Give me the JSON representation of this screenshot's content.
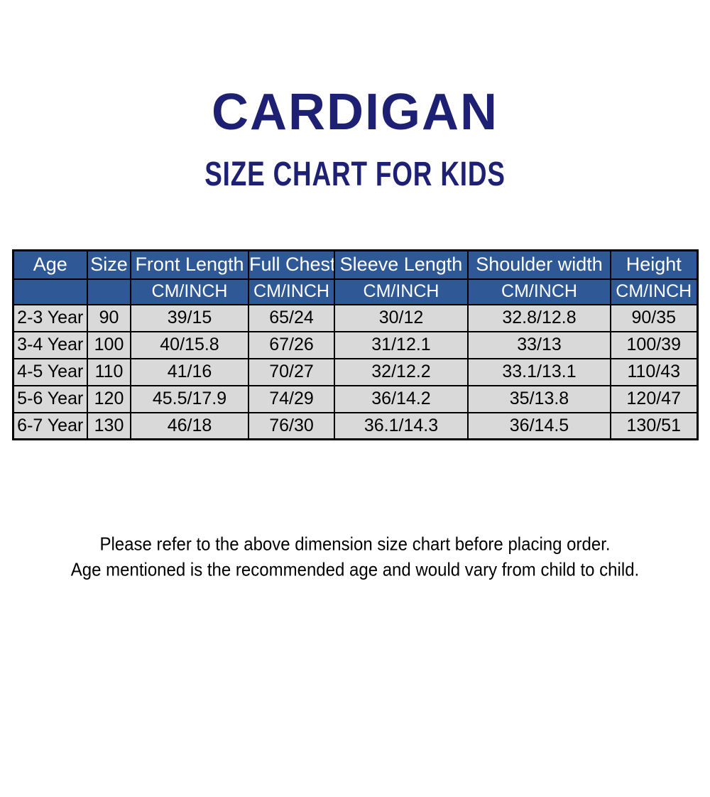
{
  "title": "CARDIGAN",
  "subtitle": "SIZE CHART FOR KIDS",
  "colors": {
    "title_text": "#1e2173",
    "header_bg": "#2f5897",
    "header_text": "#ffffff",
    "cell_bg": "#d9d9d9",
    "cell_text": "#000000",
    "border": "#000000",
    "page_bg": "#ffffff"
  },
  "chart_data": {
    "type": "table",
    "title": "CARDIGAN",
    "subtitle": "SIZE CHART FOR KIDS",
    "columns": [
      "Age",
      "Size",
      "Front Length",
      "Full Chest",
      "Sleeve Length",
      "Shoulder width",
      "Height"
    ],
    "units_row": [
      "",
      "",
      "CM/INCH",
      "CM/INCH",
      "CM/INCH",
      "CM/INCH",
      "CM/INCH"
    ],
    "rows": [
      [
        "2-3 Year",
        "90",
        "39/15",
        "65/24",
        "30/12",
        "32.8/12.8",
        "90/35"
      ],
      [
        "3-4 Year",
        "100",
        "40/15.8",
        "67/26",
        "31/12.1",
        "33/13",
        "100/39"
      ],
      [
        "4-5 Year",
        "110",
        "41/16",
        "70/27",
        "32/12.2",
        "33.1/13.1",
        "110/43"
      ],
      [
        "5-6 Year",
        "120",
        "45.5/17.9",
        "74/29",
        "36/14.2",
        "35/13.8",
        "120/47"
      ],
      [
        "6-7 Year",
        "130",
        "46/18",
        "76/30",
        "36.1/14.3",
        "36/14.5",
        "130/51"
      ]
    ]
  },
  "footer": {
    "line1": "Please refer to the above dimension size chart before placing order.",
    "line2": "Age mentioned is the recommended age and would vary from child to child."
  }
}
